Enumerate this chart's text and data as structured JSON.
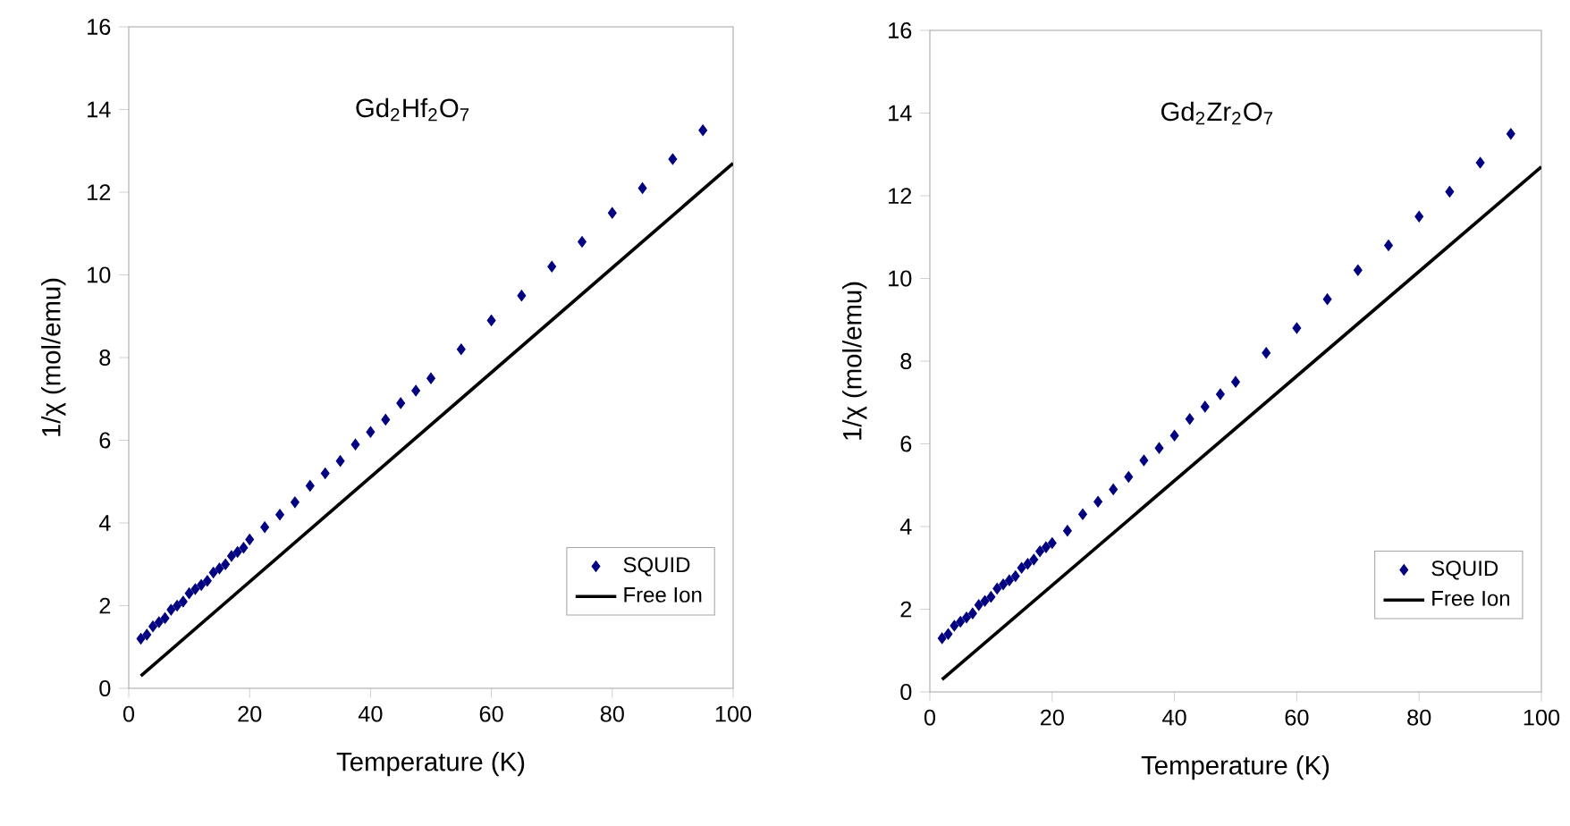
{
  "chart_data": [
    {
      "type": "scatter",
      "title": "Gd$_{2}$Hf$_{2}$O$_{7}$",
      "xlabel": "Temperature (K)",
      "ylabel": "1/χ (mol/emu)",
      "xlim": [
        0,
        100
      ],
      "ylim": [
        0,
        16
      ],
      "xticks": [
        0,
        20,
        40,
        60,
        80,
        100
      ],
      "yticks": [
        0,
        2,
        4,
        6,
        8,
        10,
        12,
        14,
        16
      ],
      "grid": false,
      "legend": "bottom right",
      "marker": "diamond",
      "series": [
        {
          "name": "SQUID",
          "color": "#000080",
          "x": [
            2,
            3,
            4,
            5,
            6,
            7,
            8,
            9,
            10,
            11,
            12,
            13,
            14,
            15,
            16,
            17,
            18,
            19,
            20,
            22.5,
            25,
            27.5,
            30,
            32.5,
            35,
            37.5,
            40,
            42.5,
            45,
            47.5,
            50,
            55,
            60,
            65,
            70,
            75,
            80,
            85,
            90,
            95
          ],
          "values": [
            1.2,
            1.3,
            1.5,
            1.6,
            1.7,
            1.9,
            2.0,
            2.1,
            2.3,
            2.4,
            2.5,
            2.6,
            2.8,
            2.9,
            3.0,
            3.2,
            3.3,
            3.4,
            3.6,
            3.9,
            4.2,
            4.5,
            4.9,
            5.2,
            5.5,
            5.9,
            6.2,
            6.5,
            6.9,
            7.2,
            7.5,
            8.2,
            8.9,
            9.5,
            10.2,
            10.8,
            11.5,
            12.1,
            12.8,
            13.5
          ]
        },
        {
          "name": "Free Ion",
          "type": "line",
          "marker": "none",
          "line_style": "solid",
          "color": "#000000",
          "x": [
            2,
            100
          ],
          "values": [
            0.3,
            12.7
          ]
        }
      ]
    },
    {
      "type": "scatter",
      "title": "Gd$_{2}$Zr$_{2}$O$_{7}$",
      "xlabel": "Temperature (K)",
      "ylabel": "1/χ (mol/emu)",
      "xlim": [
        0,
        100
      ],
      "ylim": [
        0,
        16
      ],
      "xticks": [
        0,
        20,
        40,
        60,
        80,
        100
      ],
      "yticks": [
        0,
        2,
        4,
        6,
        8,
        10,
        12,
        14,
        16
      ],
      "grid": false,
      "legend": "bottom right",
      "marker": "diamond",
      "series": [
        {
          "name": "SQUID",
          "color": "#000080",
          "x": [
            2,
            3,
            4,
            5,
            6,
            7,
            8,
            9,
            10,
            11,
            12,
            13,
            14,
            15,
            16,
            17,
            18,
            19,
            20,
            22.5,
            25,
            27.5,
            30,
            32.5,
            35,
            37.5,
            40,
            42.5,
            45,
            47.5,
            50,
            55,
            60,
            65,
            70,
            75,
            80,
            85,
            90,
            95
          ],
          "values": [
            1.3,
            1.4,
            1.6,
            1.7,
            1.8,
            1.9,
            2.1,
            2.2,
            2.3,
            2.5,
            2.6,
            2.7,
            2.8,
            3.0,
            3.1,
            3.2,
            3.4,
            3.5,
            3.6,
            3.9,
            4.3,
            4.6,
            4.9,
            5.2,
            5.6,
            5.9,
            6.2,
            6.6,
            6.9,
            7.2,
            7.5,
            8.2,
            8.8,
            9.5,
            10.2,
            10.8,
            11.5,
            12.1,
            12.8,
            13.5
          ]
        },
        {
          "name": "Free Ion",
          "type": "line",
          "marker": "none",
          "line_style": "solid",
          "color": "#000000",
          "x": [
            2,
            100
          ],
          "values": [
            0.3,
            12.7
          ]
        }
      ]
    }
  ]
}
